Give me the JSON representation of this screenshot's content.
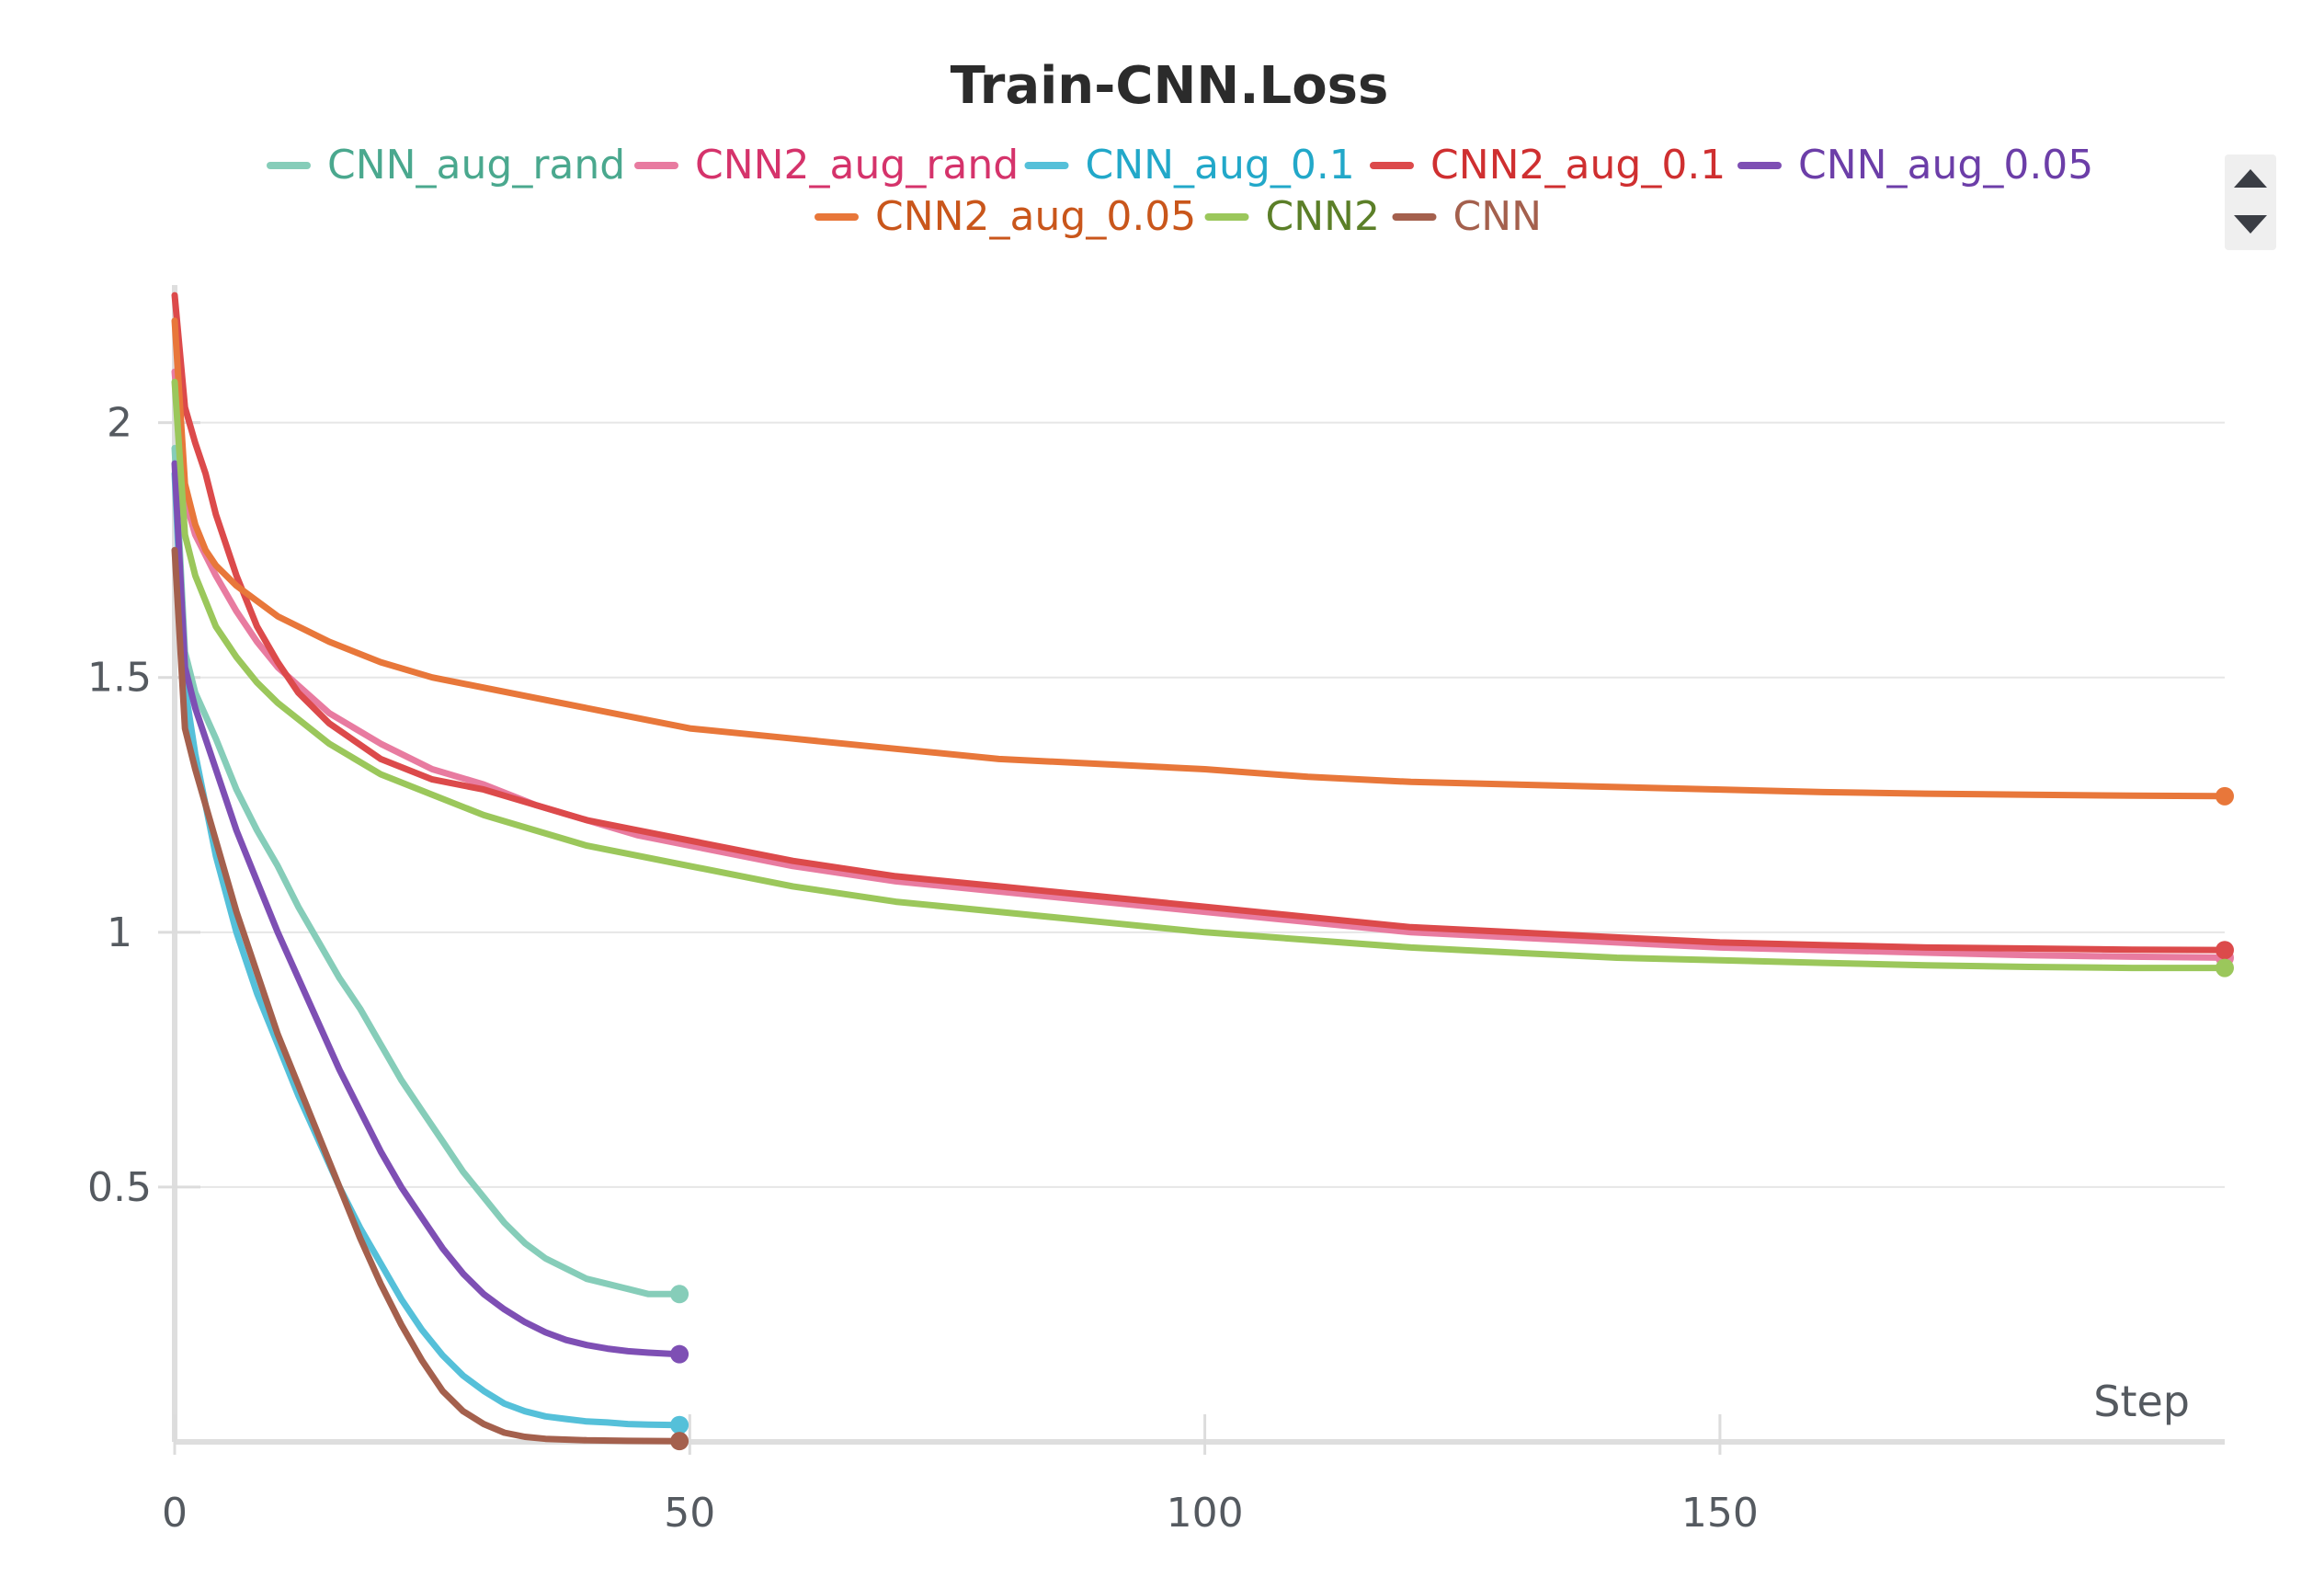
{
  "chart_data": {
    "type": "line",
    "title": "Train-CNN.Loss",
    "xlabel": "Step",
    "ylabel": "",
    "xlim": [
      0,
      199
    ],
    "ylim": [
      0,
      2.27
    ],
    "x_ticks": [
      0,
      50,
      100,
      150
    ],
    "y_ticks": [
      0.5,
      1,
      1.5,
      2
    ],
    "grid": true,
    "legend_position": "top",
    "series": [
      {
        "name": "CNN_aug_rand",
        "color": "#86cdb9",
        "text_color": "#4aa88e",
        "points": [
          [
            0,
            1.95
          ],
          [
            1,
            1.55
          ],
          [
            2,
            1.47
          ],
          [
            4,
            1.38
          ],
          [
            6,
            1.28
          ],
          [
            8,
            1.2
          ],
          [
            10,
            1.13
          ],
          [
            12,
            1.05
          ],
          [
            14,
            0.98
          ],
          [
            16,
            0.91
          ],
          [
            18,
            0.85
          ],
          [
            20,
            0.78
          ],
          [
            22,
            0.71
          ],
          [
            24,
            0.65
          ],
          [
            26,
            0.59
          ],
          [
            28,
            0.53
          ],
          [
            30,
            0.48
          ],
          [
            32,
            0.43
          ],
          [
            34,
            0.39
          ],
          [
            36,
            0.36
          ],
          [
            38,
            0.34
          ],
          [
            40,
            0.32
          ],
          [
            42,
            0.31
          ],
          [
            44,
            0.3
          ],
          [
            46,
            0.29
          ],
          [
            48,
            0.29
          ],
          [
            49,
            0.29
          ]
        ]
      },
      {
        "name": "CNN2_aug_rand",
        "color": "#e87ba0",
        "text_color": "#d5336b",
        "points": [
          [
            0,
            2.1
          ],
          [
            1,
            1.85
          ],
          [
            2,
            1.78
          ],
          [
            4,
            1.7
          ],
          [
            6,
            1.63
          ],
          [
            8,
            1.57
          ],
          [
            10,
            1.52
          ],
          [
            15,
            1.43
          ],
          [
            20,
            1.37
          ],
          [
            25,
            1.32
          ],
          [
            30,
            1.29
          ],
          [
            35,
            1.25
          ],
          [
            40,
            1.22
          ],
          [
            45,
            1.19
          ],
          [
            50,
            1.17
          ],
          [
            60,
            1.13
          ],
          [
            70,
            1.1
          ],
          [
            80,
            1.08
          ],
          [
            90,
            1.06
          ],
          [
            100,
            1.04
          ],
          [
            110,
            1.02
          ],
          [
            120,
            1.0
          ],
          [
            130,
            0.99
          ],
          [
            140,
            0.98
          ],
          [
            150,
            0.97
          ],
          [
            160,
            0.965
          ],
          [
            170,
            0.96
          ],
          [
            180,
            0.955
          ],
          [
            190,
            0.952
          ],
          [
            199,
            0.95
          ]
        ]
      },
      {
        "name": "CNN_aug_0.1",
        "color": "#55c0d9",
        "text_color": "#22a8c9",
        "points": [
          [
            0,
            1.9
          ],
          [
            1,
            1.48
          ],
          [
            2,
            1.35
          ],
          [
            4,
            1.15
          ],
          [
            6,
            1.0
          ],
          [
            8,
            0.88
          ],
          [
            10,
            0.78
          ],
          [
            12,
            0.68
          ],
          [
            14,
            0.59
          ],
          [
            16,
            0.5
          ],
          [
            18,
            0.42
          ],
          [
            20,
            0.35
          ],
          [
            22,
            0.28
          ],
          [
            24,
            0.22
          ],
          [
            26,
            0.17
          ],
          [
            28,
            0.13
          ],
          [
            30,
            0.1
          ],
          [
            32,
            0.075
          ],
          [
            34,
            0.06
          ],
          [
            36,
            0.05
          ],
          [
            38,
            0.045
          ],
          [
            40,
            0.04
          ],
          [
            42,
            0.038
          ],
          [
            44,
            0.035
          ],
          [
            46,
            0.034
          ],
          [
            49,
            0.033
          ]
        ]
      },
      {
        "name": "CNN2_aug_0.1",
        "color": "#dc4a4b",
        "text_color": "#cf2f30",
        "points": [
          [
            0,
            2.25
          ],
          [
            1,
            2.03
          ],
          [
            2,
            1.96
          ],
          [
            3,
            1.9
          ],
          [
            4,
            1.82
          ],
          [
            6,
            1.7
          ],
          [
            8,
            1.6
          ],
          [
            10,
            1.53
          ],
          [
            12,
            1.47
          ],
          [
            15,
            1.41
          ],
          [
            20,
            1.34
          ],
          [
            25,
            1.3
          ],
          [
            30,
            1.28
          ],
          [
            35,
            1.25
          ],
          [
            40,
            1.22
          ],
          [
            45,
            1.2
          ],
          [
            50,
            1.18
          ],
          [
            60,
            1.14
          ],
          [
            70,
            1.11
          ],
          [
            80,
            1.09
          ],
          [
            90,
            1.07
          ],
          [
            100,
            1.05
          ],
          [
            110,
            1.03
          ],
          [
            120,
            1.01
          ],
          [
            130,
            1.0
          ],
          [
            140,
            0.99
          ],
          [
            150,
            0.98
          ],
          [
            160,
            0.975
          ],
          [
            170,
            0.97
          ],
          [
            180,
            0.968
          ],
          [
            190,
            0.966
          ],
          [
            199,
            0.965
          ]
        ]
      },
      {
        "name": "CNN_aug_0.05",
        "color": "#7e4fb4",
        "text_color": "#6c3ea8",
        "points": [
          [
            0,
            1.92
          ],
          [
            1,
            1.52
          ],
          [
            2,
            1.44
          ],
          [
            4,
            1.32
          ],
          [
            6,
            1.2
          ],
          [
            8,
            1.1
          ],
          [
            10,
            1.0
          ],
          [
            12,
            0.91
          ],
          [
            14,
            0.82
          ],
          [
            16,
            0.73
          ],
          [
            18,
            0.65
          ],
          [
            20,
            0.57
          ],
          [
            22,
            0.5
          ],
          [
            24,
            0.44
          ],
          [
            26,
            0.38
          ],
          [
            28,
            0.33
          ],
          [
            30,
            0.29
          ],
          [
            32,
            0.26
          ],
          [
            34,
            0.235
          ],
          [
            36,
            0.215
          ],
          [
            38,
            0.2
          ],
          [
            40,
            0.19
          ],
          [
            42,
            0.183
          ],
          [
            44,
            0.178
          ],
          [
            46,
            0.175
          ],
          [
            49,
            0.172
          ]
        ]
      },
      {
        "name": "CNN2_aug_0.05",
        "color": "#e8773a",
        "text_color": "#c9561b",
        "points": [
          [
            0,
            2.2
          ],
          [
            1,
            1.88
          ],
          [
            2,
            1.8
          ],
          [
            3,
            1.75
          ],
          [
            4,
            1.72
          ],
          [
            6,
            1.68
          ],
          [
            8,
            1.65
          ],
          [
            10,
            1.62
          ],
          [
            15,
            1.57
          ],
          [
            20,
            1.53
          ],
          [
            25,
            1.5
          ],
          [
            30,
            1.48
          ],
          [
            35,
            1.46
          ],
          [
            40,
            1.44
          ],
          [
            45,
            1.42
          ],
          [
            50,
            1.4
          ],
          [
            60,
            1.38
          ],
          [
            70,
            1.36
          ],
          [
            80,
            1.34
          ],
          [
            90,
            1.33
          ],
          [
            100,
            1.32
          ],
          [
            110,
            1.305
          ],
          [
            120,
            1.295
          ],
          [
            130,
            1.29
          ],
          [
            140,
            1.285
          ],
          [
            150,
            1.28
          ],
          [
            160,
            1.275
          ],
          [
            170,
            1.272
          ],
          [
            180,
            1.27
          ],
          [
            190,
            1.268
          ],
          [
            199,
            1.267
          ]
        ]
      },
      {
        "name": "CNN2",
        "color": "#9bc75b",
        "text_color": "#5b7f28",
        "points": [
          [
            0,
            2.08
          ],
          [
            1,
            1.78
          ],
          [
            2,
            1.7
          ],
          [
            4,
            1.6
          ],
          [
            6,
            1.54
          ],
          [
            8,
            1.49
          ],
          [
            10,
            1.45
          ],
          [
            15,
            1.37
          ],
          [
            20,
            1.31
          ],
          [
            25,
            1.27
          ],
          [
            30,
            1.23
          ],
          [
            35,
            1.2
          ],
          [
            40,
            1.17
          ],
          [
            45,
            1.15
          ],
          [
            50,
            1.13
          ],
          [
            60,
            1.09
          ],
          [
            70,
            1.06
          ],
          [
            80,
            1.04
          ],
          [
            90,
            1.02
          ],
          [
            100,
            1.0
          ],
          [
            110,
            0.985
          ],
          [
            120,
            0.97
          ],
          [
            130,
            0.96
          ],
          [
            140,
            0.95
          ],
          [
            150,
            0.945
          ],
          [
            160,
            0.94
          ],
          [
            170,
            0.935
          ],
          [
            180,
            0.932
          ],
          [
            190,
            0.93
          ],
          [
            199,
            0.93
          ]
        ]
      },
      {
        "name": "CNN",
        "color": "#a4604d",
        "text_color": "#a4604d",
        "points": [
          [
            0,
            1.75
          ],
          [
            1,
            1.4
          ],
          [
            2,
            1.32
          ],
          [
            4,
            1.18
          ],
          [
            6,
            1.04
          ],
          [
            8,
            0.92
          ],
          [
            10,
            0.8
          ],
          [
            12,
            0.7
          ],
          [
            14,
            0.6
          ],
          [
            16,
            0.5
          ],
          [
            18,
            0.4
          ],
          [
            20,
            0.31
          ],
          [
            22,
            0.23
          ],
          [
            24,
            0.16
          ],
          [
            26,
            0.1
          ],
          [
            28,
            0.06
          ],
          [
            30,
            0.035
          ],
          [
            32,
            0.018
          ],
          [
            34,
            0.01
          ],
          [
            36,
            0.006
          ],
          [
            40,
            0.003
          ],
          [
            44,
            0.002
          ],
          [
            49,
            0.0015
          ]
        ]
      }
    ]
  }
}
